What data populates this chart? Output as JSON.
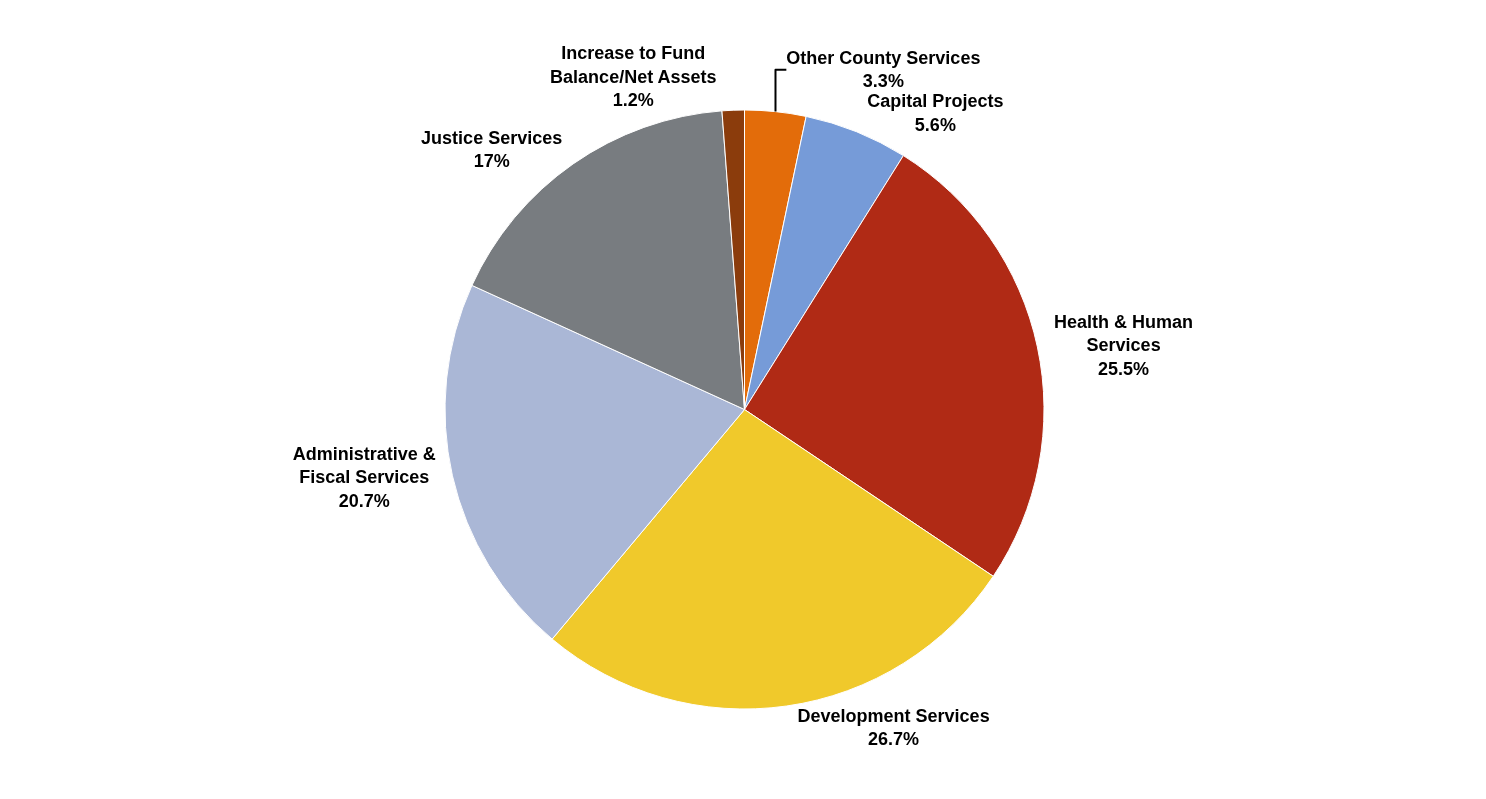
{
  "chart_data": {
    "type": "pie",
    "categories": [
      "Other County Services",
      "Capital Projects",
      "Health & Human Services",
      "Development Services",
      "Administrative & Fiscal Services",
      "Justice Services",
      "Increase to Fund Balance/Net Assets"
    ],
    "values": [
      3.3,
      5.6,
      25.5,
      26.7,
      20.7,
      17,
      1.2
    ],
    "value_labels": [
      "3.3%",
      "5.6%",
      "25.5%",
      "26.7%",
      "20.7%",
      "17%",
      "1.2%"
    ],
    "colors": [
      "#e36c0a",
      "#769bd8",
      "#b02a15",
      "#f0c92b",
      "#aab7d6",
      "#787c80",
      "#8b3c0c"
    ],
    "legend": false
  }
}
